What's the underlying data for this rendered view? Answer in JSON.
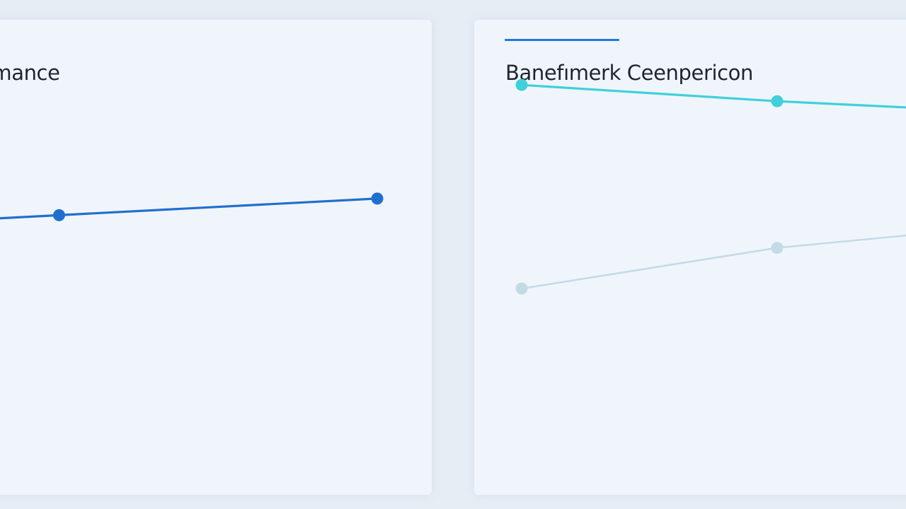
{
  "colors": {
    "background": "#e7edf5",
    "card": "#f0f5fb",
    "accent": "#1f7ad6"
  },
  "chart_data": [
    {
      "type": "line",
      "title": "ormance",
      "x": [
        1,
        2,
        3
      ],
      "ylim": [
        0,
        100
      ],
      "grid": false,
      "series": [
        {
          "values": [
            49,
            53,
            57
          ],
          "color": "#1f6fd0",
          "markers": [
            false,
            true,
            true
          ]
        }
      ]
    },
    {
      "type": "line",
      "title": "Banefımerk Ceenpericon",
      "x": [
        1,
        2,
        3
      ],
      "ylim": [
        0,
        100
      ],
      "grid": false,
      "series": [
        {
          "values": [
            84,
            80,
            77
          ],
          "color": "#3fd0dc",
          "markers": [
            true,
            true,
            false
          ]
        },
        {
          "values": [
            34,
            44,
            50
          ],
          "color": "#c3dbe6",
          "markers": [
            true,
            true,
            false
          ]
        }
      ]
    }
  ]
}
